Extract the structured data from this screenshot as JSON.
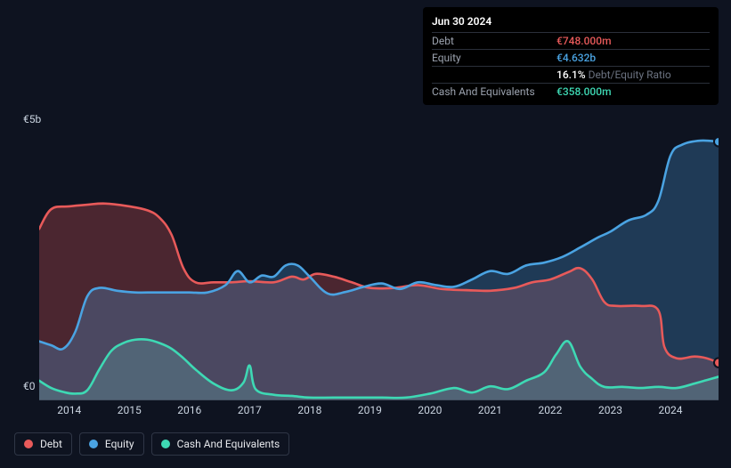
{
  "tooltip": {
    "date": "Jun 30 2024",
    "rows": [
      {
        "label": "Debt",
        "value": "€748.000m",
        "color": "#e85a5a"
      },
      {
        "label": "Equity",
        "value": "€4.632b",
        "color": "#4aa3e2"
      },
      {
        "label": "",
        "value": "16.1%",
        "suffix": "Debt/Equity Ratio",
        "color": "#ffffff",
        "suffixColor": "#6b7280"
      },
      {
        "label": "Cash And Equivalents",
        "value": "€358.000m",
        "color": "#3ed9b4"
      }
    ]
  },
  "chart": {
    "type": "area",
    "background_color": "#0e1320",
    "ylim": [
      0,
      5
    ],
    "xlim": [
      2013.5,
      2024.8
    ],
    "y_ticks": [
      {
        "v": 0,
        "label": "€0"
      },
      {
        "v": 5,
        "label": "€5b"
      }
    ],
    "x_ticks": [
      2014,
      2015,
      2016,
      2017,
      2018,
      2019,
      2020,
      2021,
      2022,
      2023,
      2024
    ],
    "line_width": 2.5,
    "fill_opacity": 0.28,
    "series": [
      {
        "name": "Debt",
        "color": "#e85a5a",
        "points": [
          [
            2013.5,
            3.05
          ],
          [
            2013.7,
            3.4
          ],
          [
            2014.0,
            3.45
          ],
          [
            2014.3,
            3.48
          ],
          [
            2014.6,
            3.5
          ],
          [
            2015.0,
            3.45
          ],
          [
            2015.3,
            3.38
          ],
          [
            2015.5,
            3.25
          ],
          [
            2015.7,
            2.95
          ],
          [
            2015.9,
            2.35
          ],
          [
            2016.1,
            2.1
          ],
          [
            2016.4,
            2.1
          ],
          [
            2016.7,
            2.1
          ],
          [
            2017.0,
            2.12
          ],
          [
            2017.4,
            2.1
          ],
          [
            2017.7,
            2.2
          ],
          [
            2017.9,
            2.15
          ],
          [
            2018.1,
            2.25
          ],
          [
            2018.4,
            2.2
          ],
          [
            2018.7,
            2.1
          ],
          [
            2019.0,
            2.0
          ],
          [
            2019.4,
            2.0
          ],
          [
            2019.8,
            2.05
          ],
          [
            2020.2,
            1.98
          ],
          [
            2020.6,
            1.96
          ],
          [
            2021.0,
            1.95
          ],
          [
            2021.4,
            2.0
          ],
          [
            2021.7,
            2.1
          ],
          [
            2022.0,
            2.15
          ],
          [
            2022.3,
            2.28
          ],
          [
            2022.5,
            2.35
          ],
          [
            2022.7,
            2.15
          ],
          [
            2022.9,
            1.75
          ],
          [
            2023.1,
            1.68
          ],
          [
            2023.5,
            1.68
          ],
          [
            2023.8,
            1.6
          ],
          [
            2023.9,
            0.95
          ],
          [
            2024.1,
            0.75
          ],
          [
            2024.4,
            0.78
          ],
          [
            2024.6,
            0.75
          ],
          [
            2024.8,
            0.67
          ]
        ],
        "end_marker": true
      },
      {
        "name": "Equity",
        "color": "#4aa3e2",
        "points": [
          [
            2013.5,
            1.05
          ],
          [
            2013.7,
            0.98
          ],
          [
            2013.9,
            0.92
          ],
          [
            2014.1,
            1.22
          ],
          [
            2014.3,
            1.85
          ],
          [
            2014.5,
            2.0
          ],
          [
            2014.8,
            1.95
          ],
          [
            2015.1,
            1.92
          ],
          [
            2015.4,
            1.92
          ],
          [
            2015.7,
            1.92
          ],
          [
            2016.0,
            1.92
          ],
          [
            2016.3,
            1.92
          ],
          [
            2016.6,
            2.05
          ],
          [
            2016.8,
            2.3
          ],
          [
            2017.0,
            2.1
          ],
          [
            2017.2,
            2.22
          ],
          [
            2017.4,
            2.2
          ],
          [
            2017.6,
            2.4
          ],
          [
            2017.8,
            2.4
          ],
          [
            2018.0,
            2.2
          ],
          [
            2018.3,
            1.9
          ],
          [
            2018.6,
            1.93
          ],
          [
            2018.9,
            2.02
          ],
          [
            2019.2,
            2.08
          ],
          [
            2019.5,
            1.98
          ],
          [
            2019.8,
            2.1
          ],
          [
            2020.1,
            2.05
          ],
          [
            2020.4,
            2.02
          ],
          [
            2020.7,
            2.15
          ],
          [
            2021.0,
            2.3
          ],
          [
            2021.3,
            2.25
          ],
          [
            2021.6,
            2.4
          ],
          [
            2021.9,
            2.45
          ],
          [
            2022.2,
            2.55
          ],
          [
            2022.5,
            2.72
          ],
          [
            2022.8,
            2.9
          ],
          [
            2023.0,
            3.0
          ],
          [
            2023.3,
            3.2
          ],
          [
            2023.6,
            3.3
          ],
          [
            2023.8,
            3.55
          ],
          [
            2024.0,
            4.35
          ],
          [
            2024.2,
            4.55
          ],
          [
            2024.5,
            4.62
          ],
          [
            2024.8,
            4.6
          ]
        ],
        "end_marker": true
      },
      {
        "name": "Cash And Equivalents",
        "color": "#3ed9b4",
        "points": [
          [
            2013.5,
            0.35
          ],
          [
            2013.7,
            0.22
          ],
          [
            2013.9,
            0.15
          ],
          [
            2014.1,
            0.12
          ],
          [
            2014.3,
            0.18
          ],
          [
            2014.5,
            0.55
          ],
          [
            2014.7,
            0.88
          ],
          [
            2014.9,
            1.02
          ],
          [
            2015.1,
            1.08
          ],
          [
            2015.3,
            1.08
          ],
          [
            2015.5,
            1.02
          ],
          [
            2015.7,
            0.92
          ],
          [
            2015.9,
            0.75
          ],
          [
            2016.1,
            0.55
          ],
          [
            2016.4,
            0.3
          ],
          [
            2016.7,
            0.18
          ],
          [
            2016.9,
            0.32
          ],
          [
            2017.0,
            0.62
          ],
          [
            2017.1,
            0.2
          ],
          [
            2017.4,
            0.1
          ],
          [
            2017.7,
            0.08
          ],
          [
            2018.0,
            0.05
          ],
          [
            2018.4,
            0.05
          ],
          [
            2018.8,
            0.05
          ],
          [
            2019.2,
            0.05
          ],
          [
            2019.6,
            0.05
          ],
          [
            2020.0,
            0.12
          ],
          [
            2020.4,
            0.22
          ],
          [
            2020.7,
            0.14
          ],
          [
            2021.0,
            0.25
          ],
          [
            2021.3,
            0.2
          ],
          [
            2021.6,
            0.35
          ],
          [
            2021.9,
            0.5
          ],
          [
            2022.1,
            0.82
          ],
          [
            2022.3,
            1.05
          ],
          [
            2022.5,
            0.6
          ],
          [
            2022.7,
            0.38
          ],
          [
            2022.9,
            0.24
          ],
          [
            2023.2,
            0.24
          ],
          [
            2023.5,
            0.22
          ],
          [
            2023.8,
            0.24
          ],
          [
            2024.1,
            0.22
          ],
          [
            2024.4,
            0.3
          ],
          [
            2024.6,
            0.36
          ],
          [
            2024.8,
            0.42
          ]
        ],
        "end_marker": false
      }
    ]
  },
  "legend": {
    "items": [
      {
        "label": "Debt",
        "color": "#e85a5a"
      },
      {
        "label": "Equity",
        "color": "#4aa3e2"
      },
      {
        "label": "Cash And Equivalents",
        "color": "#3ed9b4"
      }
    ]
  }
}
